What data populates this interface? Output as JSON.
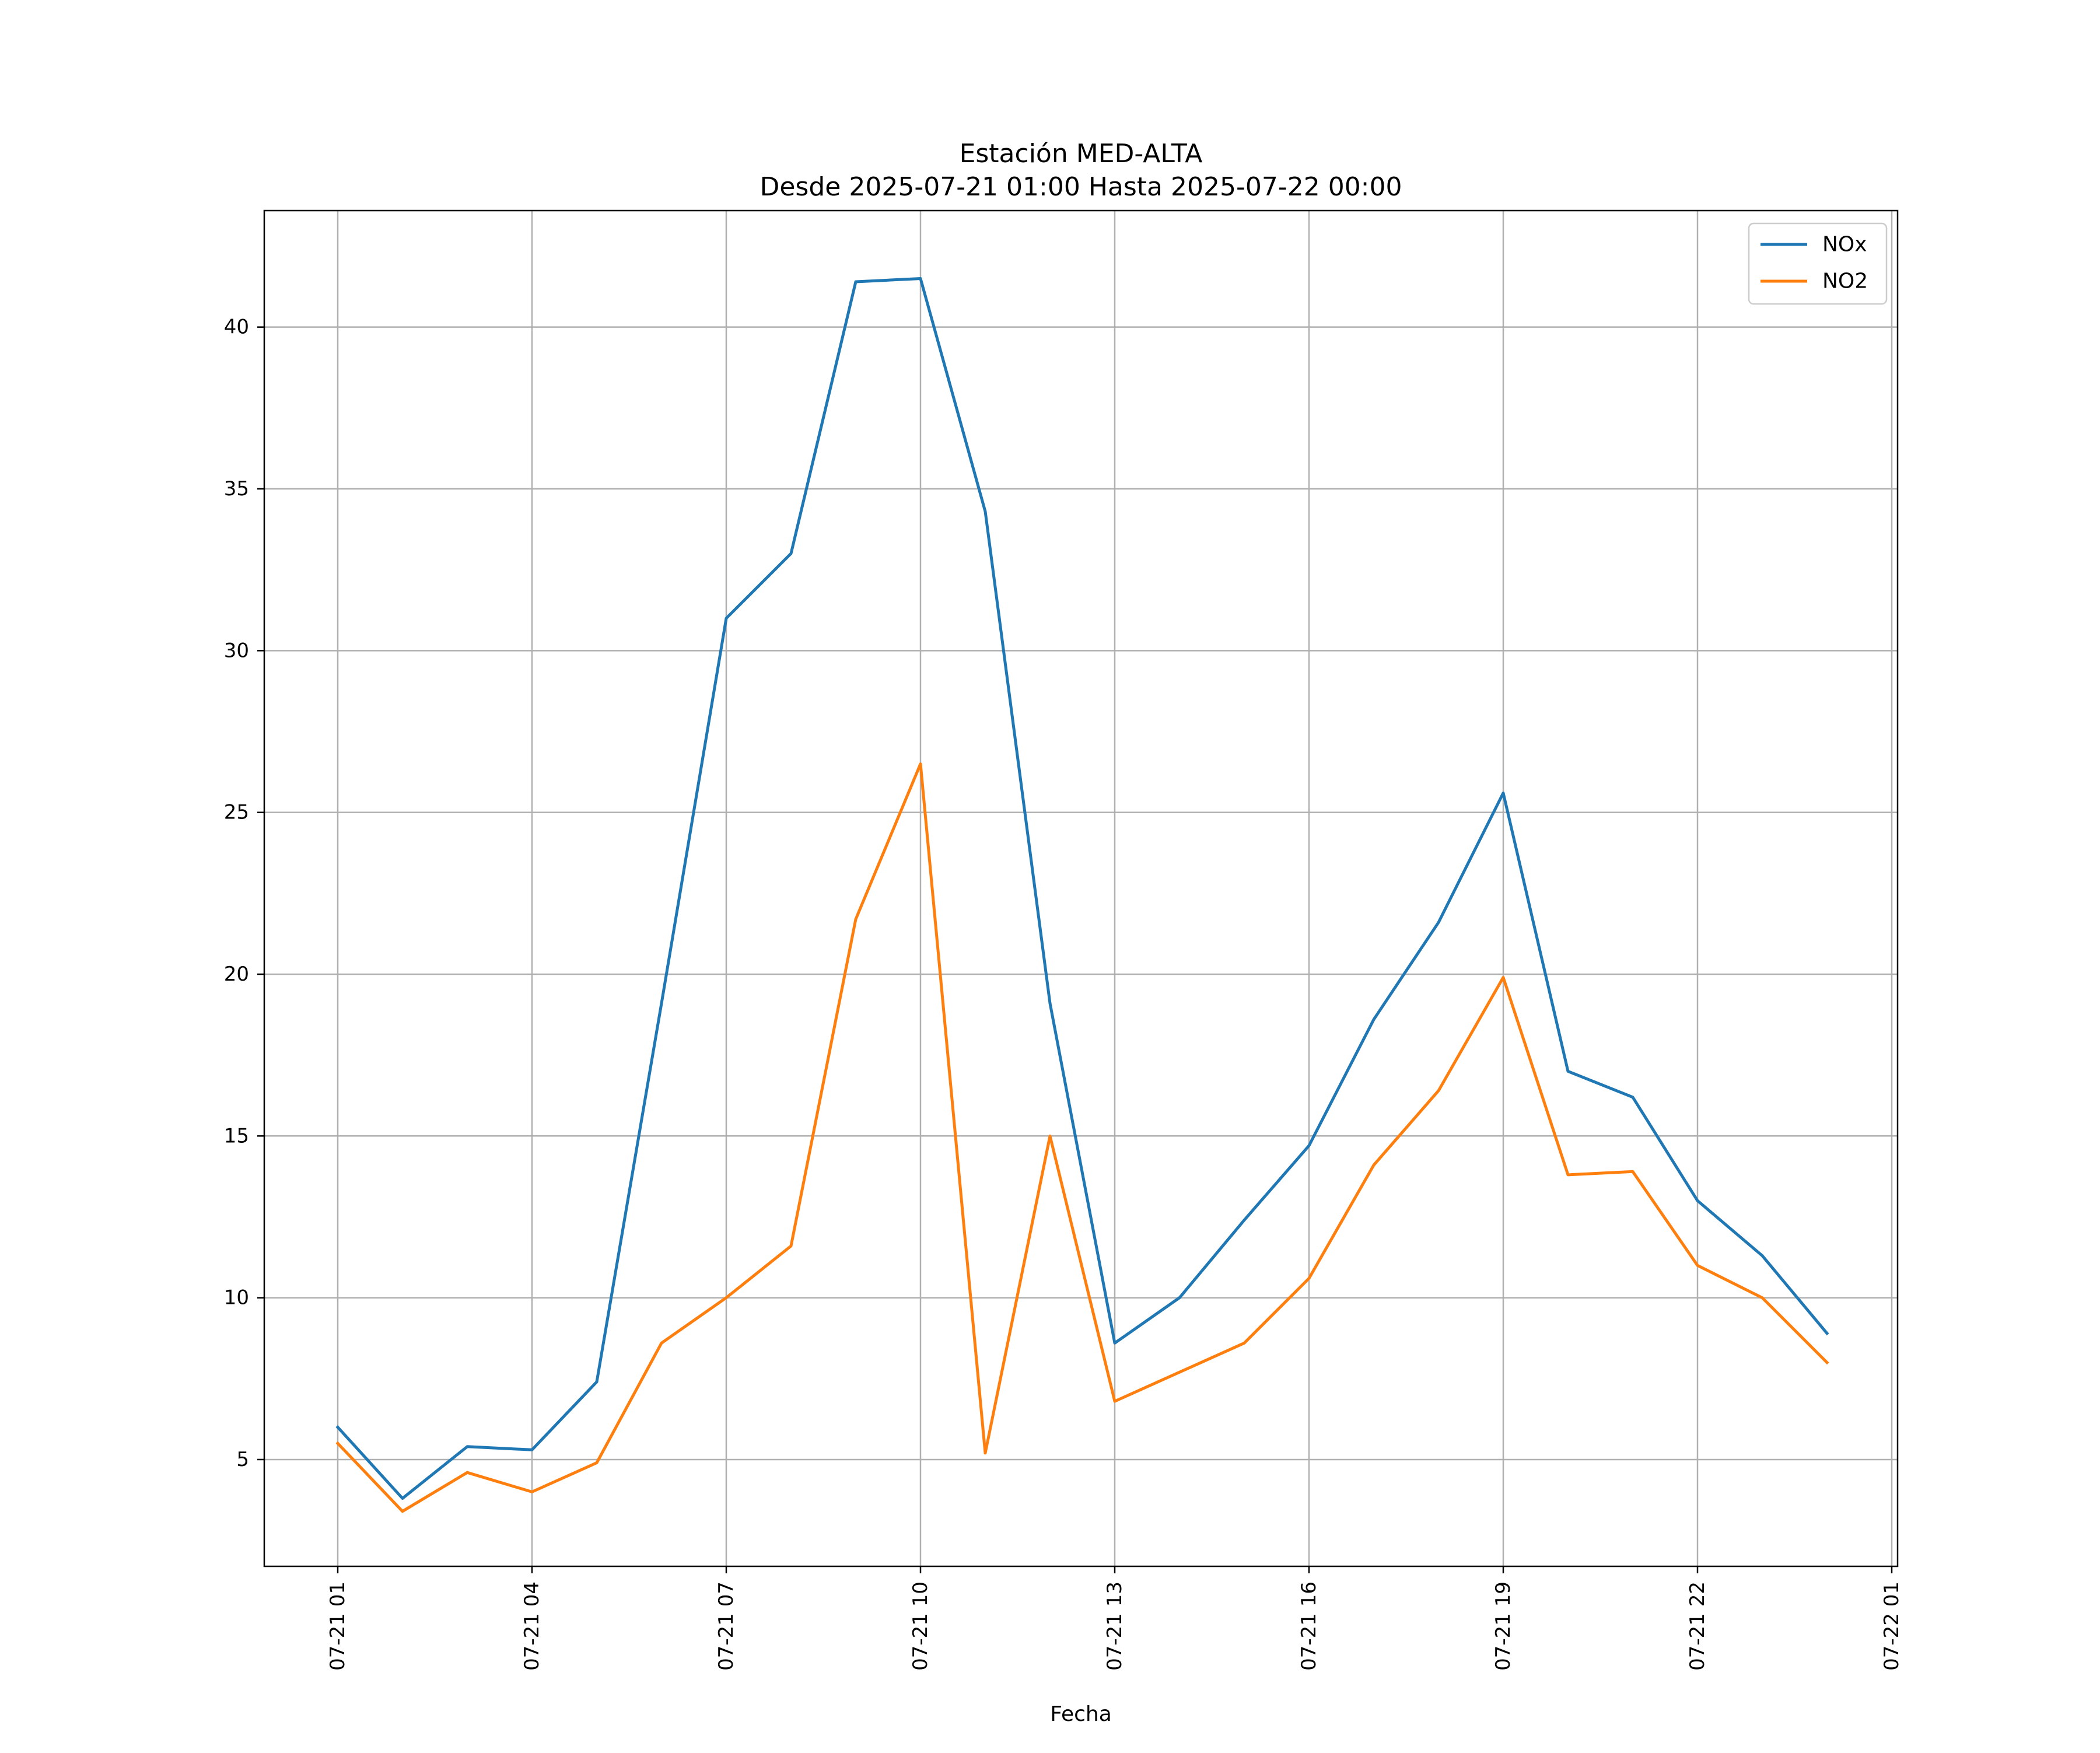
{
  "chart_data": {
    "type": "line",
    "title": "Estación MED-ALTA",
    "subtitle": "Desde 2025-07-21 01:00 Hasta 2025-07-22 00:00",
    "xlabel": "Fecha",
    "ylabel": "",
    "x": [
      "07-21 01:00",
      "07-21 02:00",
      "07-21 03:00",
      "07-21 04:00",
      "07-21 05:00",
      "07-21 06:00",
      "07-21 07:00",
      "07-21 08:00",
      "07-21 09:00",
      "07-21 10:00",
      "07-21 11:00",
      "07-21 12:00",
      "07-21 13:00",
      "07-21 14:00",
      "07-21 15:00",
      "07-21 16:00",
      "07-21 17:00",
      "07-21 18:00",
      "07-21 19:00",
      "07-21 20:00",
      "07-21 21:00",
      "07-21 22:00",
      "07-21 23:00",
      "07-22 00:00"
    ],
    "x_ticks": [
      "07-21 01",
      "07-21 04",
      "07-21 07",
      "07-21 10",
      "07-21 13",
      "07-21 16",
      "07-21 19",
      "07-21 22",
      "07-22 01"
    ],
    "y_ticks": [
      "5",
      "10",
      "15",
      "20",
      "25",
      "30",
      "35",
      "40"
    ],
    "ylim": [
      1.7,
      43.6
    ],
    "grid": true,
    "legend_position": "top-right",
    "series": [
      {
        "name": "NOx",
        "color": "#1f77b4",
        "values": [
          6.0,
          3.8,
          5.4,
          5.3,
          7.4,
          19.1,
          31.0,
          33.0,
          41.4,
          41.5,
          34.3,
          19.1,
          8.6,
          10.0,
          12.4,
          14.7,
          18.6,
          21.6,
          25.6,
          17.0,
          16.2,
          13.0,
          11.3,
          8.9
        ]
      },
      {
        "name": "NO2",
        "color": "#ff7f0e",
        "values": [
          5.5,
          3.4,
          4.6,
          4.0,
          4.9,
          8.6,
          10.0,
          11.6,
          21.7,
          26.5,
          5.2,
          15.0,
          6.8,
          7.7,
          8.6,
          10.6,
          14.1,
          16.4,
          19.9,
          13.8,
          13.9,
          11.0,
          10.0,
          8.0
        ]
      }
    ]
  }
}
